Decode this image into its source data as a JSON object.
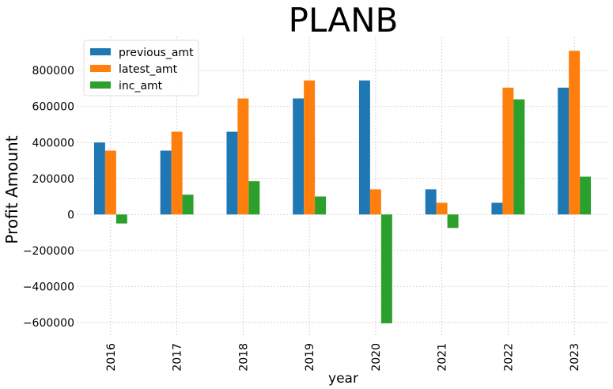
{
  "chart_data": {
    "type": "bar",
    "title": "PLANB",
    "xlabel": "year",
    "ylabel": "Profit Amount",
    "categories": [
      "2016",
      "2017",
      "2018",
      "2019",
      "2020",
      "2021",
      "2022",
      "2023"
    ],
    "series": [
      {
        "name": "previous_amt",
        "color": "#1f77b4",
        "values": [
          400000,
          355000,
          460000,
          645000,
          745000,
          140000,
          65000,
          705000
        ]
      },
      {
        "name": "latest_amt",
        "color": "#ff7f0e",
        "values": [
          355000,
          460000,
          645000,
          745000,
          140000,
          65000,
          705000,
          910000
        ]
      },
      {
        "name": "inc_amt",
        "color": "#2ca02c",
        "values": [
          -50000,
          110000,
          185000,
          100000,
          -605000,
          -75000,
          640000,
          210000
        ]
      }
    ],
    "ylim": [
      -680000,
      990000
    ],
    "yticks": [
      -600000,
      -400000,
      -200000,
      0,
      200000,
      400000,
      600000,
      800000
    ],
    "ytick_labels": [
      "−600000",
      "−400000",
      "−200000",
      "0",
      "200000",
      "400000",
      "600000",
      "800000"
    ],
    "grid": true,
    "legend_position": "upper-left"
  }
}
